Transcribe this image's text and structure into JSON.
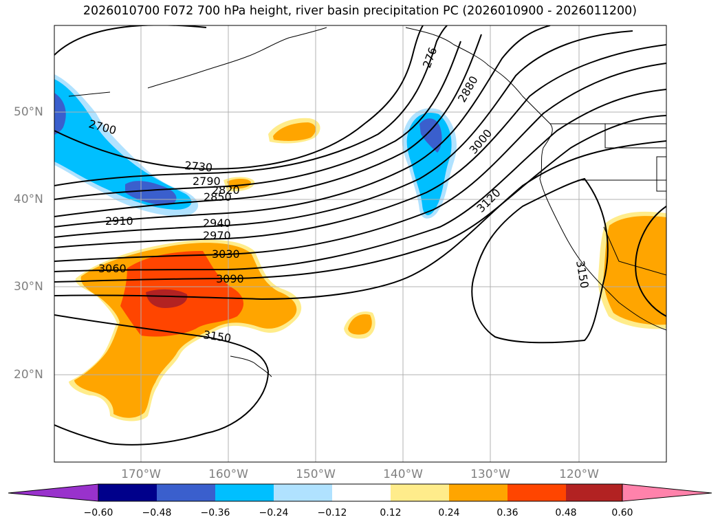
{
  "title": "2026010700 F072 700 hPa height, river basin precipitation PC (2026010900 - 2026011200)",
  "lat_labels": [
    "50°N",
    "40°N",
    "30°N",
    "20°N"
  ],
  "lon_labels": [
    "170°W",
    "160°W",
    "150°W",
    "140°W",
    "130°W",
    "120°W"
  ],
  "contour_labels": [
    "2700",
    "2730",
    "2790",
    "2820",
    "2850",
    "2910",
    "2940",
    "2970",
    "3030",
    "3060",
    "3090",
    "3150",
    "276",
    "2880",
    "3000",
    "3120",
    "3150"
  ],
  "colorbar": {
    "ticks": [
      "−0.60",
      "−0.48",
      "−0.36",
      "−0.24",
      "−0.12",
      "0.12",
      "0.24",
      "0.36",
      "0.48",
      "0.60"
    ],
    "colors": [
      "#9932cc",
      "#00008b",
      "#3a5fcd",
      "#00bfff",
      "#b0e2ff",
      "#ffffff",
      "#ffec8b",
      "#ffa500",
      "#ff4500",
      "#b22222",
      "#ff82ab"
    ]
  }
}
